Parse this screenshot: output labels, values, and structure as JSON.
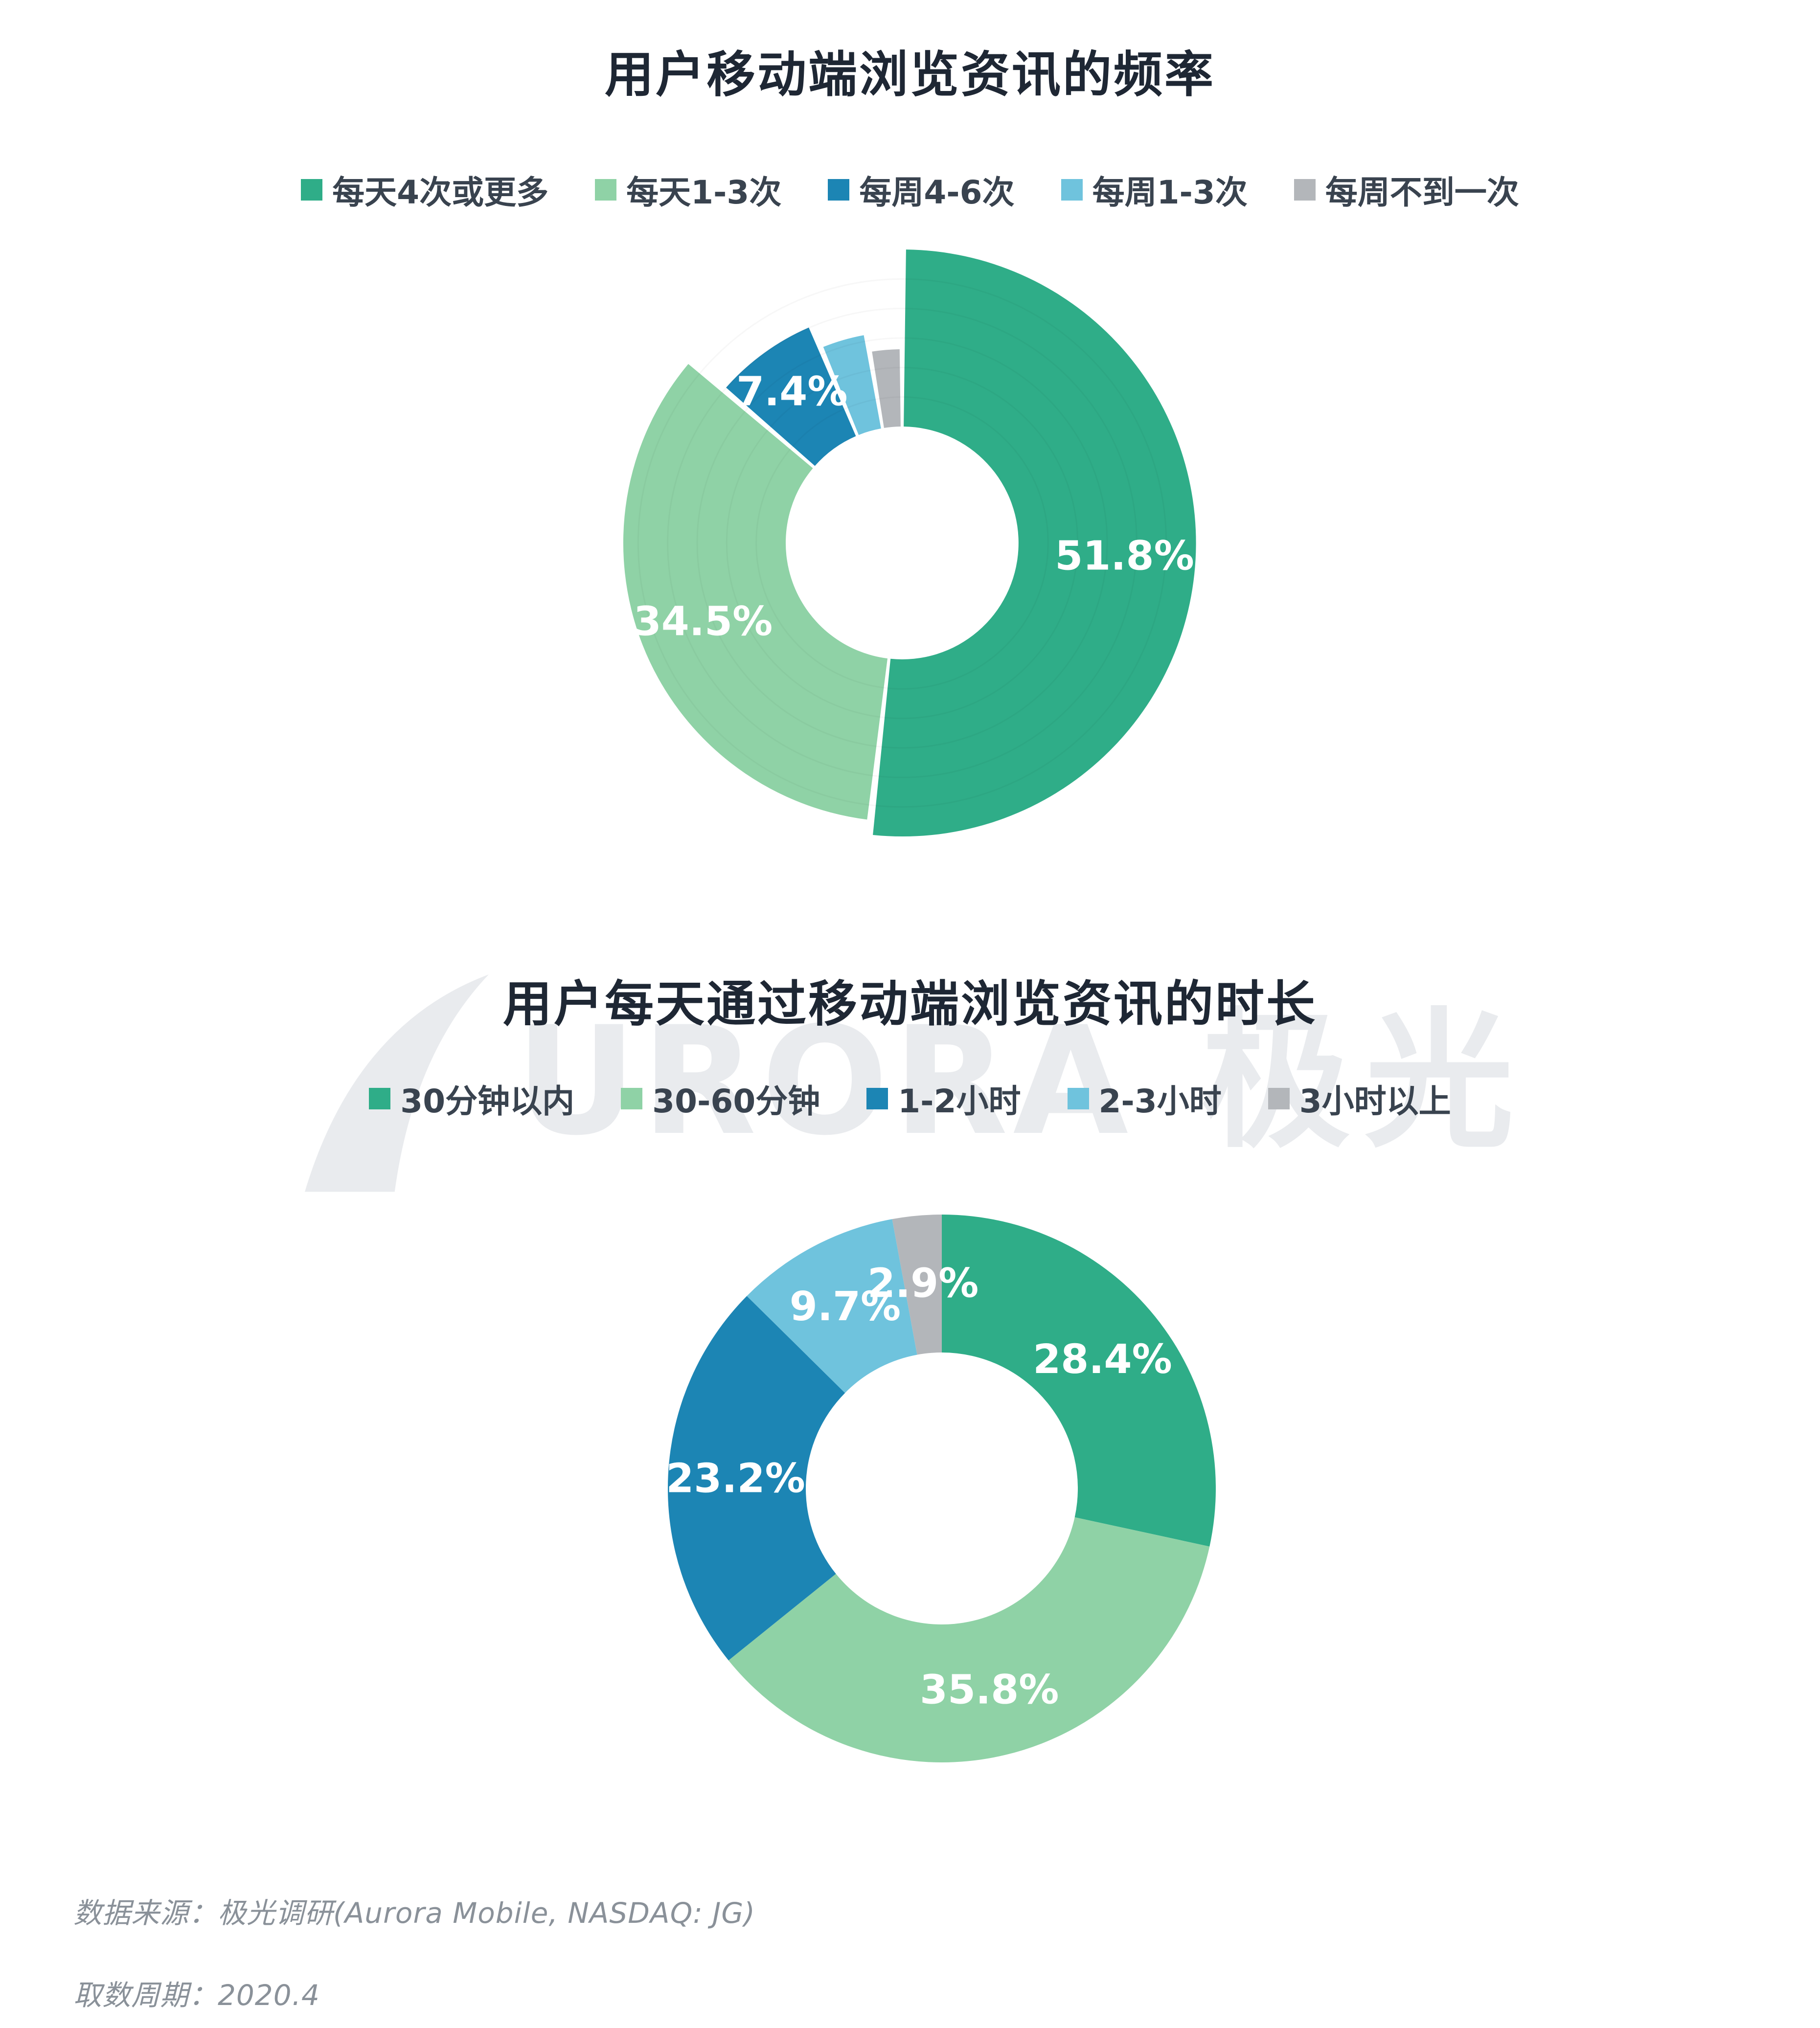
{
  "chart_data": [
    {
      "type": "pie",
      "variant": "rose-donut",
      "title": "用户移动端浏览资讯的频率",
      "categories": [
        "每天4次或更多",
        "每天1-3次",
        "每周4-6次",
        "每周1-3次",
        "每周不到一次"
      ],
      "values": [
        51.8,
        34.5,
        7.4,
        3.6,
        2.7
      ],
      "labels": [
        "51.8%",
        "34.5%",
        "7.4%",
        "",
        ""
      ],
      "colors": [
        "#2FAD88",
        "#8FD2A6",
        "#1C85B4",
        "#6FC3DD",
        "#B3B6BA"
      ],
      "legend_position": "top",
      "start_angle_deg": 0,
      "clockwise": true
    },
    {
      "type": "pie",
      "variant": "donut",
      "title": "用户每天通过移动端浏览资讯的时长",
      "categories": [
        "30分钟以内",
        "30-60分钟",
        "1-2小时",
        "2-3小时",
        "3小时以上"
      ],
      "values": [
        28.4,
        35.8,
        23.2,
        9.7,
        2.9
      ],
      "labels": [
        "28.4%",
        "35.8%",
        "23.2%",
        "9.7%",
        "2.9%"
      ],
      "colors": [
        "#2FAD88",
        "#8FD2A6",
        "#1C85B4",
        "#6FC3DD",
        "#B3B6BA"
      ],
      "legend_position": "top",
      "start_angle_deg": 0,
      "clockwise": true
    }
  ],
  "watermark": {
    "latin": "URORA",
    "cjk": "极光"
  },
  "footer": {
    "source": "数据来源：极光调研(Aurora Mobile, NASDAQ: JG)",
    "period": "取数周期：2020.4"
  }
}
